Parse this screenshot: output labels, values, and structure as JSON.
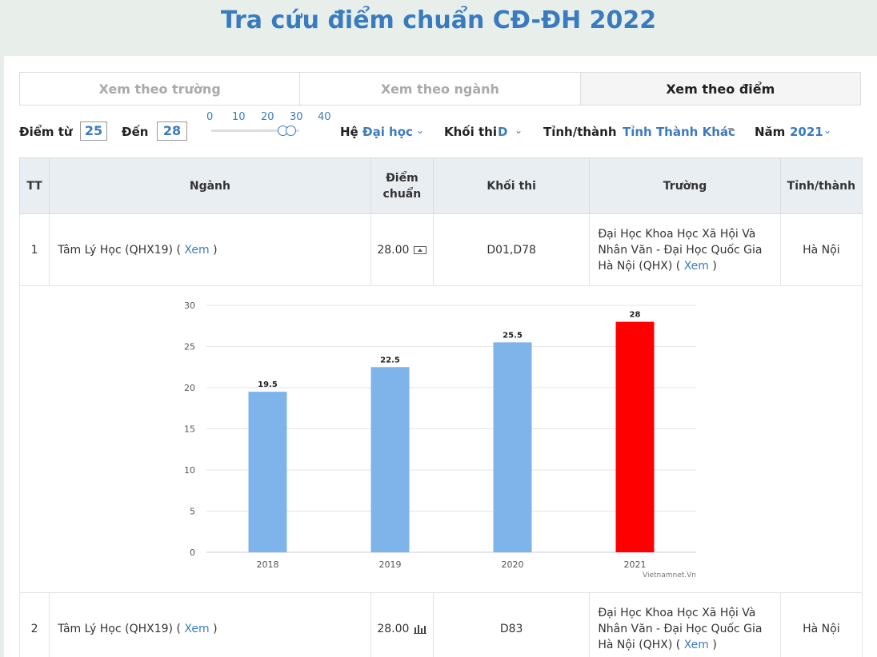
{
  "page_title": "Tra cứu điểm chuẩn CĐ-ĐH 2022",
  "tabs": [
    {
      "label": "Xem theo trường",
      "active": false
    },
    {
      "label": "Xem theo ngành",
      "active": false
    },
    {
      "label": "Xem theo điểm",
      "active": true
    }
  ],
  "filters": {
    "from_label": "Điểm từ",
    "from_value": "25",
    "to_label": "Đến",
    "to_value": "28",
    "slider_ticks": [
      "0",
      "10",
      "20",
      "30",
      "40"
    ],
    "he_label": "Hệ",
    "he_value": "Đại học",
    "khoi_label": "Khối thi",
    "khoi_value": "D",
    "tinh_label": "Tỉnh/thành",
    "tinh_value": "Tỉnh Thành Khác",
    "nam_label": "Năm",
    "nam_value": "2021"
  },
  "table": {
    "headers": {
      "tt": "TT",
      "nganh": "Ngành",
      "diem_line1": "Điểm",
      "diem_line2": "chuẩn",
      "khoi": "Khối thi",
      "truong": "Trường",
      "tinh": "Tỉnh/thành"
    },
    "rows": [
      {
        "tt": "1",
        "nganh": "Tâm Lý Học (QHX19) (",
        "nganh_link": "Xem",
        "nganh_end": ")",
        "diem": "28.00",
        "khoi": "D01,D78",
        "truong": "Đại Học Khoa Học Xã Hội Và Nhân Văn - Đại Học Quốc Gia Hà Nội (QHX) (",
        "truong_link": "Xem",
        "truong_end": ")",
        "tinh": "Hà Nội"
      },
      {
        "tt": "2",
        "nganh": "Tâm Lý Học (QHX19) (",
        "nganh_link": "Xem",
        "nganh_end": ")",
        "diem": "28.00",
        "khoi": "D83",
        "truong": "Đại Học Khoa Học Xã Hội Và Nhân Văn - Đại Học Quốc Gia Hà Nội (QHX) (",
        "truong_link": "Xem",
        "truong_end": ")",
        "tinh": "Hà Nội"
      }
    ]
  },
  "chart_data": {
    "type": "bar",
    "categories": [
      "2018",
      "2019",
      "2020",
      "2021"
    ],
    "values": [
      19.5,
      22.5,
      25.5,
      28
    ],
    "data_labels": [
      "19.5",
      "22.5",
      "25.5",
      "28"
    ],
    "colors": [
      "#7eb4ea",
      "#7eb4ea",
      "#7eb4ea",
      "#ff0000"
    ],
    "ylim": [
      0,
      30
    ],
    "yticks": [
      0,
      5,
      10,
      15,
      20,
      25,
      30
    ],
    "credit": "Vietnamnet.Vn",
    "grid": true
  },
  "colors": {
    "accent": "#3a7bc0",
    "score": "#c0392b"
  }
}
